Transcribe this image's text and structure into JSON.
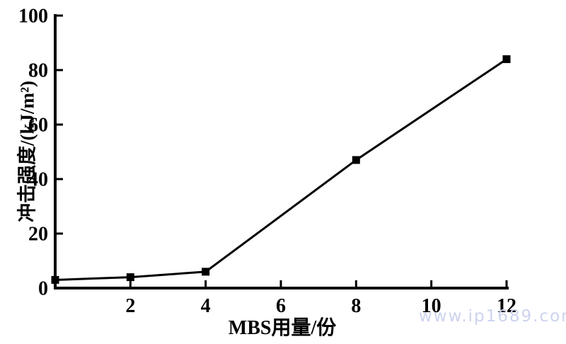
{
  "chart_data": {
    "type": "line",
    "title": "",
    "xlabel": "MBS用量/份",
    "ylabel": "冲击强度/(kJ/m²)",
    "xlim": [
      0,
      12
    ],
    "ylim": [
      0,
      100
    ],
    "xticks": [
      2,
      4,
      6,
      8,
      10,
      12
    ],
    "yticks": [
      0,
      20,
      40,
      60,
      80,
      100
    ],
    "grid": false,
    "legend_position": "none",
    "series": [
      {
        "marker": "square",
        "x": [
          0,
          2,
          4,
          8,
          12
        ],
        "values": [
          3,
          4,
          6,
          47,
          84
        ]
      }
    ],
    "colors": {
      "axis": "#000000",
      "line": "#000000",
      "marker": "#000000",
      "tick_text": "#000000"
    }
  },
  "watermark": {
    "text": "www.ip1689.com",
    "color": "#ccd3ee"
  }
}
